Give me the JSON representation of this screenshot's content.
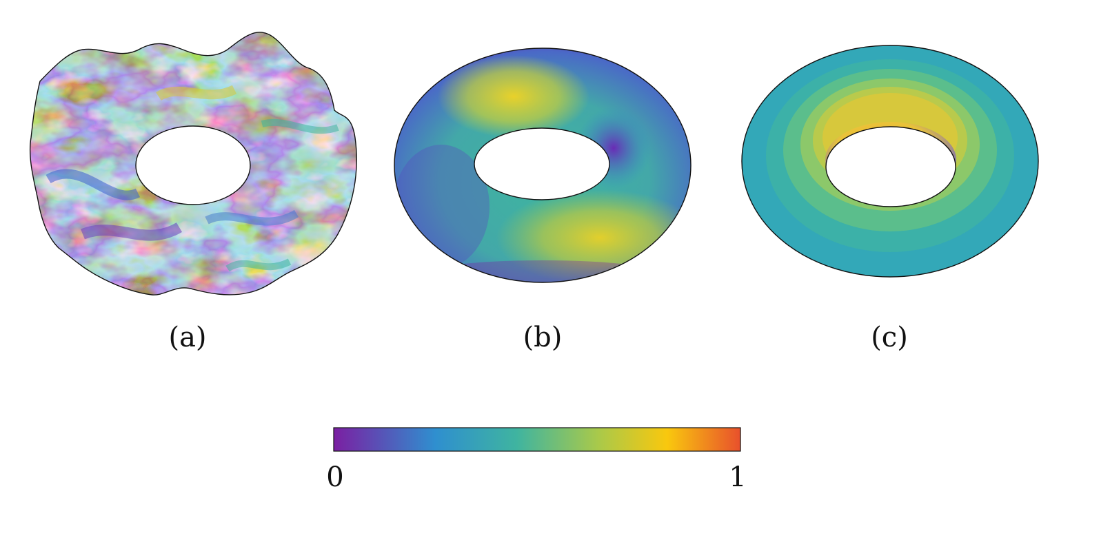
{
  "figure": {
    "panels": [
      {
        "label": "(a)",
        "shape": "rough-terrain-annulus"
      },
      {
        "label": "(b)",
        "shape": "torus"
      },
      {
        "label": "(c)",
        "shape": "stepped-annulus"
      }
    ],
    "colorbar": {
      "min_label": "0",
      "max_label": "1",
      "colormap": "plasma-viridis",
      "stops": [
        "#7b1fa2",
        "#2f8fcf",
        "#3fb4a0",
        "#a9c94a",
        "#f9c80e",
        "#e8502c"
      ]
    }
  }
}
